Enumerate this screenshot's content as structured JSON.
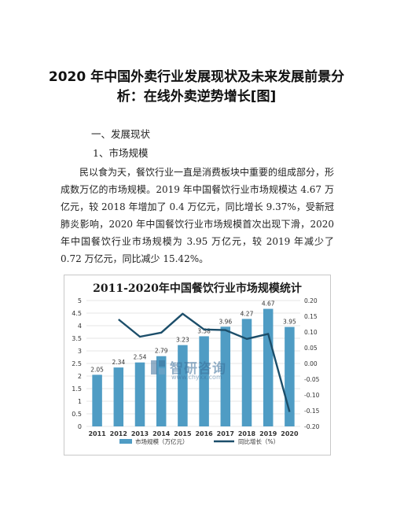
{
  "article": {
    "title": "2020 年中国外卖行业发展现状及未来发展前景分析：在线外卖逆势增长[图]",
    "heading1": "一、发展现状",
    "heading2": "1、市场规模",
    "paragraph": "民以食为天，餐饮行业一直是消费板块中重要的组成部分，形成数万亿的市场规模。2019 年中国餐饮行业市场规模达 4.67 万亿元，较 2018 年增加了 0.4 万亿元，同比增长 9.37%，受新冠肺炎影响，2020 年中国餐饮行业市场规模首次出现下滑，2020 年中国餐饮行业市场规模为 3.95 万亿元，较 2019 年减少了 0.72 万亿元，同比减少 15.42%。"
  },
  "watermark": {
    "text": "智研咨询",
    "url": "www.chyxx.com",
    "logo_icon": "chyxx-logo-icon"
  },
  "colors": {
    "bar": "#4f9cc4",
    "bar_dark": "#3b80a8",
    "line": "#1c4e6a",
    "grid": "#dddddd"
  },
  "chart_data": {
    "type": "bar",
    "title": "2011-2020年中国餐饮行业市场规模统计",
    "categories": [
      "2011",
      "2012",
      "2013",
      "2014",
      "2015",
      "2016",
      "2017",
      "2018",
      "2019",
      "2020"
    ],
    "series": [
      {
        "name": "市场规模（万亿元）",
        "type": "bar",
        "axis": "left",
        "values": [
          2.05,
          2.34,
          2.54,
          2.79,
          3.23,
          3.58,
          3.96,
          4.27,
          4.67,
          3.95
        ],
        "labels": [
          "2.05",
          "2.34",
          "2.54",
          "2.79",
          "3.23",
          "3.58",
          "3.96",
          "4.27",
          "4.67",
          "3.95"
        ]
      },
      {
        "name": "同比增长（%）",
        "type": "line",
        "axis": "right",
        "values": [
          null,
          0.14,
          0.085,
          0.098,
          0.158,
          0.108,
          0.106,
          0.078,
          0.094,
          -0.154
        ]
      }
    ],
    "y_left": {
      "min": 0,
      "max": 5,
      "ticks": [
        "0",
        "0.5",
        "1",
        "1.5",
        "2",
        "2.5",
        "3",
        "3.5",
        "4",
        "4.5",
        "5"
      ]
    },
    "y_right": {
      "min": -0.2,
      "max": 0.2,
      "ticks": [
        "-0.20",
        "-0.15",
        "-0.10",
        "-0.05",
        "0.00",
        "0.05",
        "0.10",
        "0.15",
        "0.20"
      ]
    },
    "grid": true,
    "legend_position": "bottom"
  }
}
